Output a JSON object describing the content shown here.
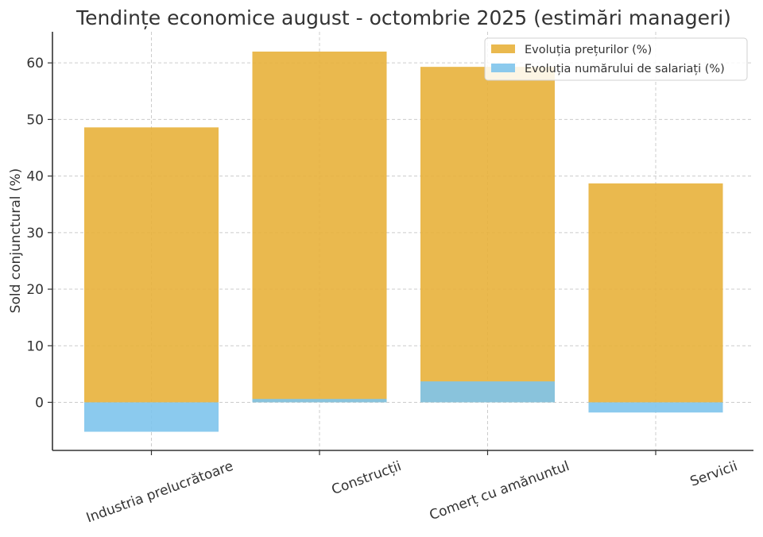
{
  "chart_data": {
    "type": "bar",
    "title": "Tendințe economice august - octombrie 2025 (estimări manageri)",
    "xlabel": "",
    "ylabel": "Sold conjunctural (%)",
    "categories": [
      "Industria prelucrătoare",
      "Construcții",
      "Comerț cu amănuntul",
      "Servicii"
    ],
    "series": [
      {
        "name": "Evoluția prețurilor (%)",
        "values": [
          48.6,
          62.0,
          59.3,
          38.7
        ],
        "color": "#E8B13B",
        "opacity": 0.9
      },
      {
        "name": "Evoluția numărului de salariați (%)",
        "values": [
          -5.2,
          0.6,
          3.7,
          -1.8
        ],
        "color": "#7EC4EC",
        "opacity": 0.9
      }
    ],
    "ylim": [
      -8.5,
      65.5
    ],
    "yticks": [
      0,
      10,
      20,
      30,
      40,
      50,
      60
    ],
    "grid": true,
    "legend": "top-right",
    "overlay": true
  }
}
